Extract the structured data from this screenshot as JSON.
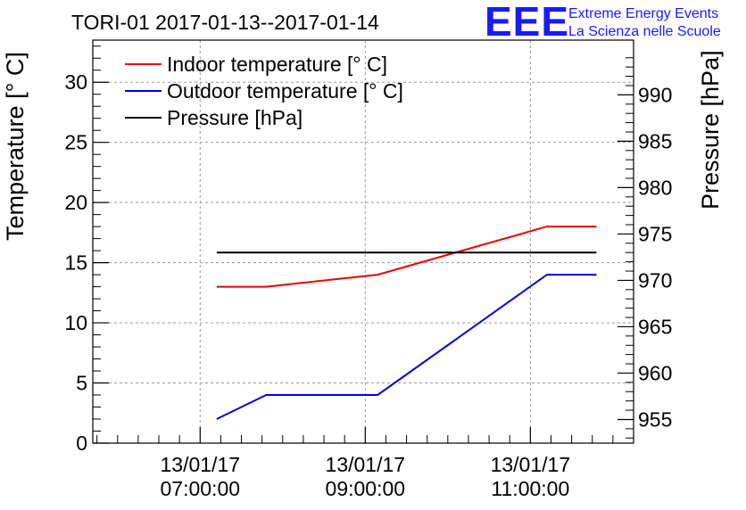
{
  "chart_data": {
    "type": "line",
    "title": "TORI-01 2017-01-13--2017-01-14",
    "x_tick_labels": [
      {
        "date": "13/01/17",
        "time": "07:00:00",
        "hour": 7
      },
      {
        "date": "13/01/17",
        "time": "09:00:00",
        "hour": 9
      },
      {
        "date": "13/01/17",
        "time": "11:00:00",
        "hour": 11
      }
    ],
    "xlim": [
      5.7,
      12.25
    ],
    "ylabel": "Temperature [° C]",
    "ylim": [
      0,
      33.5
    ],
    "y_ticks": [
      0,
      5,
      10,
      15,
      20,
      25,
      30
    ],
    "y2label": "Pressure [hPa]",
    "y2lim": [
      952.45,
      995.9
    ],
    "y2_ticks": [
      955,
      960,
      965,
      970,
      975,
      980,
      985,
      990
    ],
    "grid": true,
    "legend_position": "top-left",
    "series": [
      {
        "name": "Indoor temperature [° C]",
        "axis": "left",
        "color": "#ee0000",
        "x": [
          7.2,
          7.8,
          9.15,
          11.2,
          11.8
        ],
        "values": [
          13,
          13,
          14,
          18,
          18
        ]
      },
      {
        "name": "Outdoor temperature [° C]",
        "axis": "left",
        "color": "#0000dd",
        "x": [
          7.2,
          7.8,
          9.15,
          11.2,
          11.8
        ],
        "values": [
          2,
          4,
          4,
          14,
          14
        ]
      },
      {
        "name": "Pressure [hPa]",
        "axis": "right",
        "color": "#000000",
        "x": [
          7.2,
          11.8
        ],
        "values": [
          973,
          973
        ]
      }
    ]
  },
  "branding": {
    "logo": "EEE",
    "line1": "Extreme Energy Events",
    "line2": "La Scienza nelle Scuole",
    "color": "#1a1aff"
  }
}
